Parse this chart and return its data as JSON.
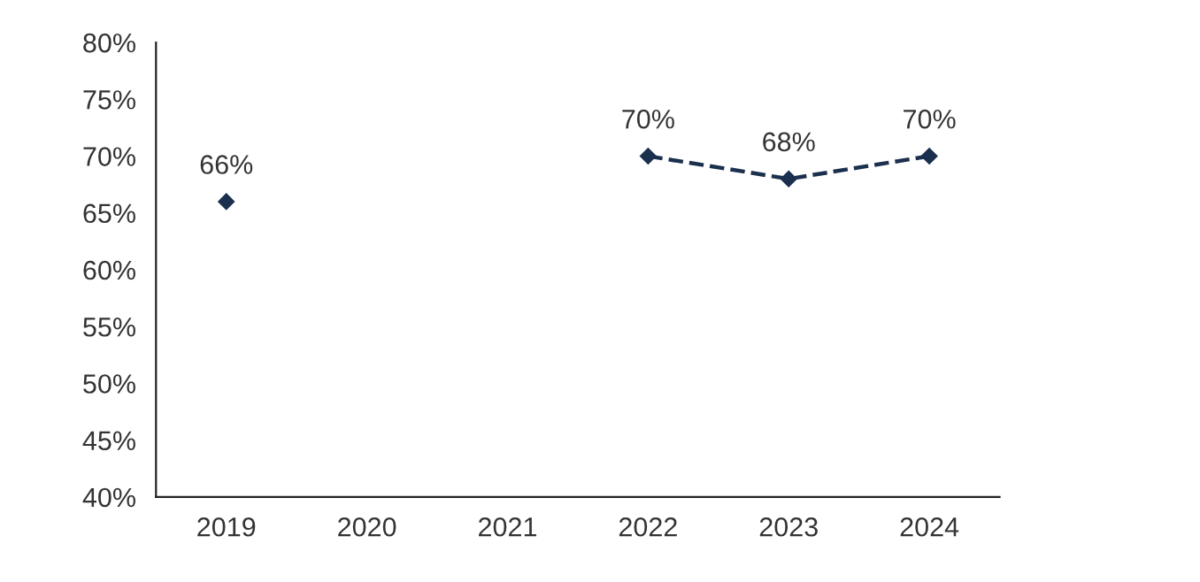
{
  "chart_data": {
    "type": "line",
    "categories": [
      "2019",
      "2020",
      "2021",
      "2022",
      "2023",
      "2024"
    ],
    "series": [
      {
        "color": "#1b2f4e",
        "values": [
          66,
          null,
          null,
          70,
          68,
          70
        ],
        "value_labels": [
          "66%",
          null,
          null,
          "70%",
          "68%",
          "70%"
        ]
      }
    ],
    "ylim": [
      40,
      80
    ],
    "yticks": [
      {
        "value": 40,
        "label": "40%"
      },
      {
        "value": 45,
        "label": "45%"
      },
      {
        "value": 50,
        "label": "50%"
      },
      {
        "value": 55,
        "label": "55%"
      },
      {
        "value": 60,
        "label": "60%"
      },
      {
        "value": 65,
        "label": "65%"
      },
      {
        "value": 70,
        "label": "70%"
      },
      {
        "value": 75,
        "label": "75%"
      },
      {
        "value": 80,
        "label": "80%"
      }
    ],
    "marker": "diamond",
    "line_style": "dashed",
    "grid": false,
    "legend": false
  }
}
